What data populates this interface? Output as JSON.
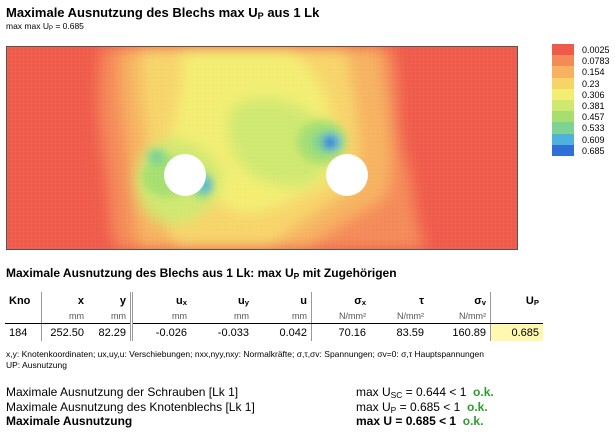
{
  "header": {
    "title_pre": "Maximale Ausnutzung des Blechs max U",
    "title_sub": "P",
    "title_post": " aus 1 Lk",
    "subtitle_pre": "max max U",
    "subtitle_sub": "P",
    "subtitle_post": " = 0.685"
  },
  "legend": {
    "values": [
      "0.0025",
      "0.0783",
      "0.154",
      "0.23",
      "0.306",
      "0.381",
      "0.457",
      "0.533",
      "0.609",
      "0.685"
    ],
    "colors": [
      "#ef5a4a",
      "#f48a58",
      "#f6b260",
      "#f7d46a",
      "#f3ee72",
      "#cfe870",
      "#a6df70",
      "#7fd392",
      "#4fb1dc",
      "#2f6fd6"
    ]
  },
  "section": {
    "title_pre": "Maximale Ausnutzung des Blechs aus 1 Lk: max U",
    "title_sub": "P",
    "title_post": " mit Zugehörigen"
  },
  "table": {
    "headers": [
      {
        "main": "Kno",
        "sub": ""
      },
      {
        "main": "x",
        "sub": ""
      },
      {
        "main": "y",
        "sub": ""
      },
      {
        "main": "u",
        "sub": "x"
      },
      {
        "main": "u",
        "sub": "y"
      },
      {
        "main": "u",
        "sub": ""
      },
      {
        "main": "σ",
        "sub": "x"
      },
      {
        "main": "τ",
        "sub": ""
      },
      {
        "main": "σ",
        "sub": "v"
      },
      {
        "main": "U",
        "sub": "P"
      }
    ],
    "units": [
      "",
      "mm",
      "mm",
      "mm",
      "mm",
      "mm",
      "N/mm²",
      "N/mm²",
      "N/mm²",
      ""
    ],
    "row": [
      "184",
      "252.50",
      "82.29",
      "-0.026",
      "-0.033",
      "0.042",
      "70.16",
      "83.59",
      "160.89",
      "0.685"
    ]
  },
  "notes": {
    "line1": "x,y: Knotenkoordinaten;  ux,uy,u: Verschiebungen;  nxx,nyy,nxy: Normalkräfte;  σ,τ,σv: Spannungen;  σv=0: σ,τ Hauptspannungen",
    "line2": "UP: Ausnutzung"
  },
  "summary": [
    {
      "label": "Maximale Ausnutzung der Schrauben [Lk 1]",
      "expr_pre": "max U",
      "expr_sub": "SC",
      "expr_post": " = 0.644  <  1",
      "ok": "o.k.",
      "bold": false
    },
    {
      "label": "Maximale Ausnutzung des Knotenblechs [Lk 1]",
      "expr_pre": "max U",
      "expr_sub": "P",
      "expr_post": " = 0.685  <  1",
      "ok": "o.k.",
      "bold": false
    },
    {
      "label": "Maximale Ausnutzung",
      "expr_pre": "max U",
      "expr_sub": "",
      "expr_post": " = 0.685  <  1",
      "ok": "o.k.",
      "bold": true
    }
  ]
}
